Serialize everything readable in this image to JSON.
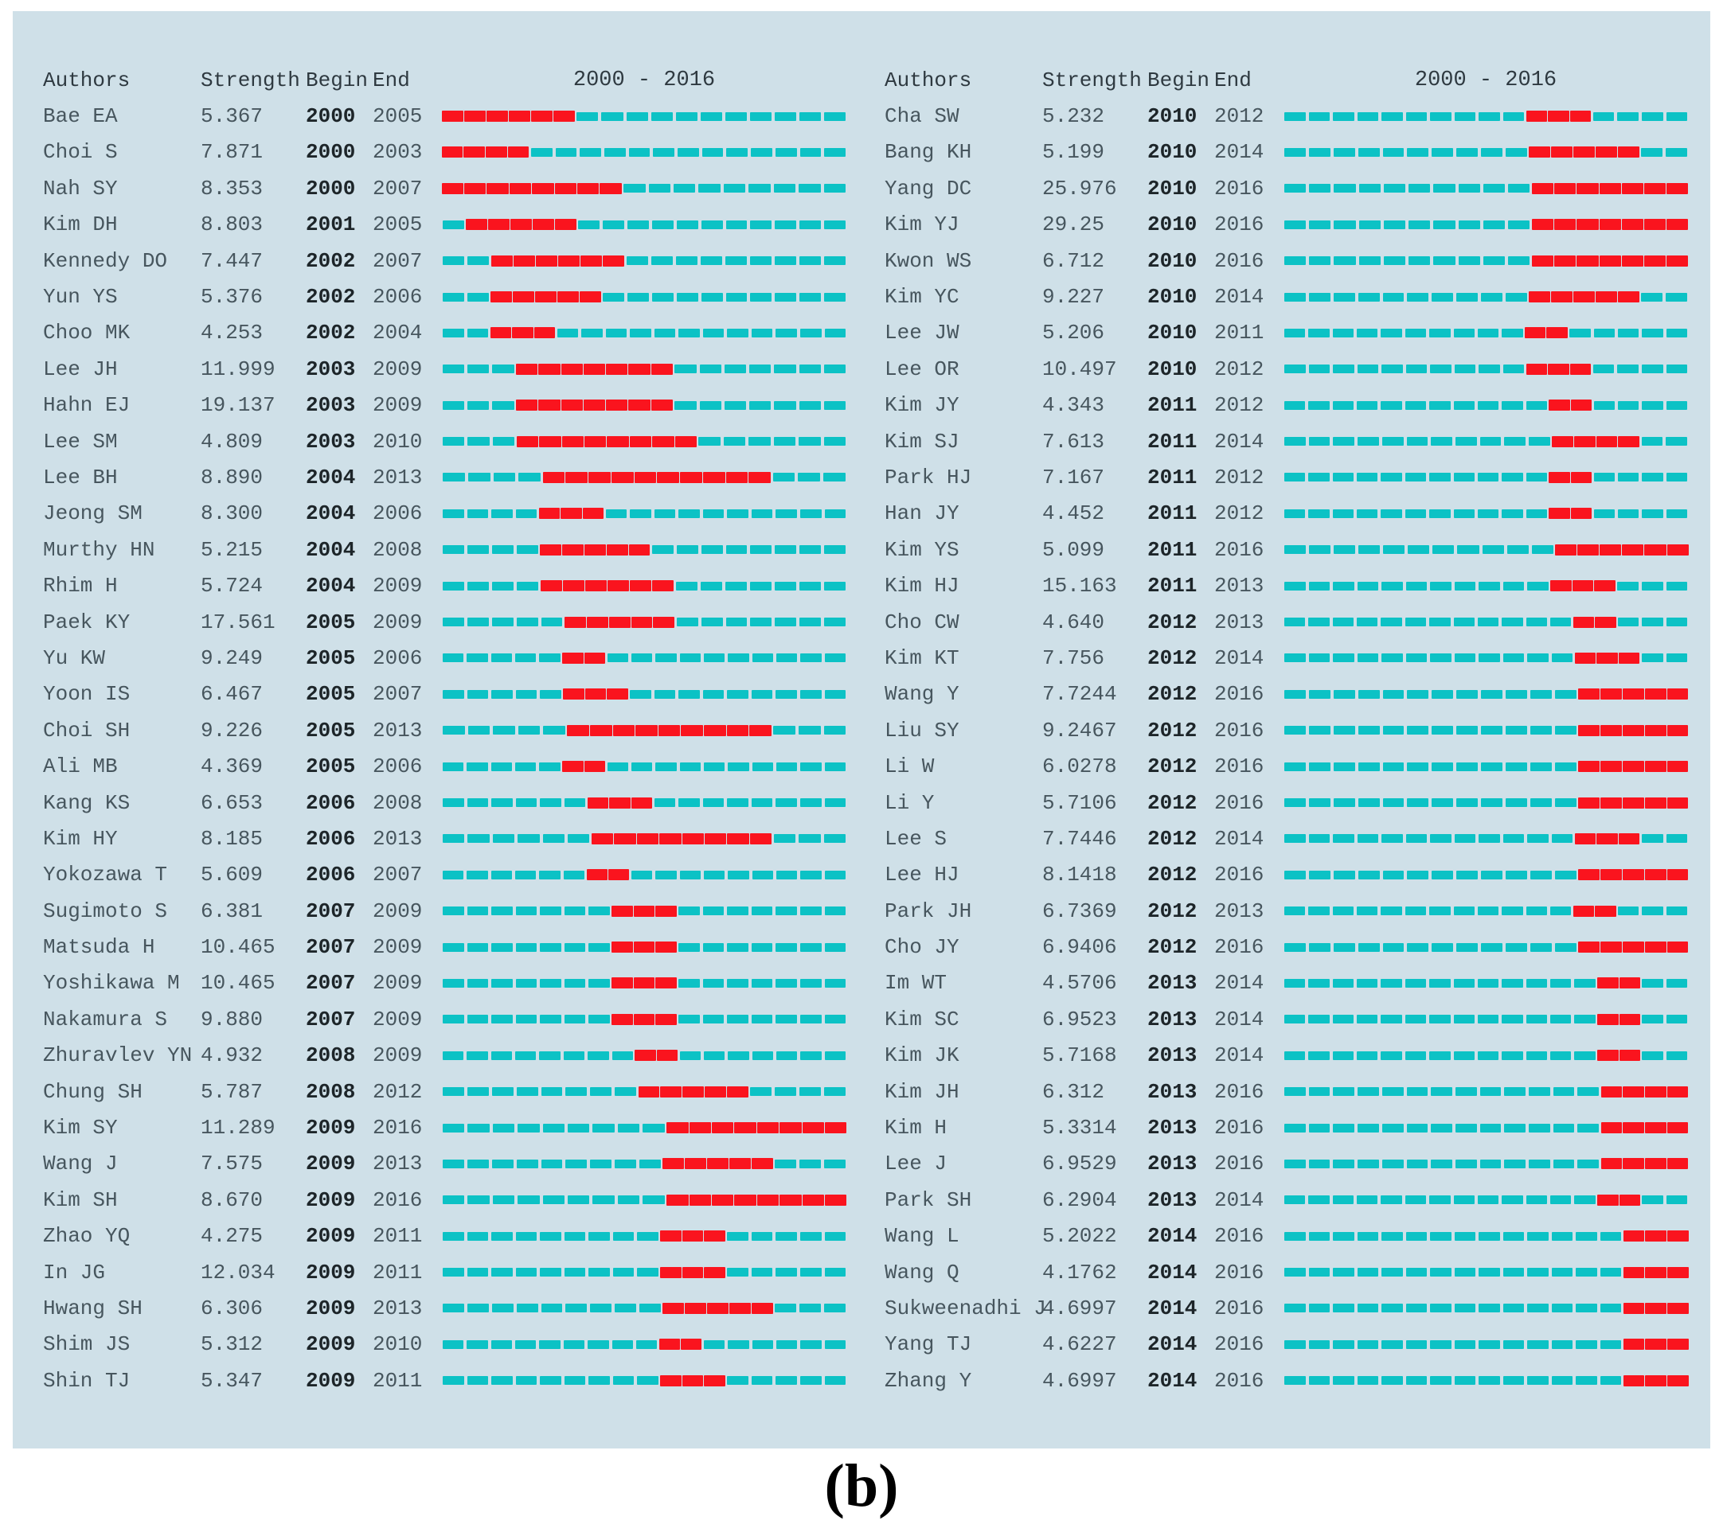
{
  "header": {
    "authors": "Authors",
    "strength": "Strength",
    "begin": "Begin",
    "end": "End",
    "range": "2000 - 2016"
  },
  "caption": "(b)",
  "colors": {
    "panel_bg": "#cfe0e8",
    "burst_red": "#fa141e",
    "timeline_cyan": "#0cc2c5",
    "text": "#47565e",
    "begin_text": "#1d2529"
  },
  "chart_data": {
    "type": "table",
    "columns": [
      "Authors",
      "Strength",
      "Begin",
      "End",
      "2000 - 2016"
    ],
    "year_range": [
      2000,
      2016
    ],
    "legend": {
      "red_dash": "burst period (Begin to End)",
      "cyan_dash": "non-burst years"
    },
    "left_rows": [
      {
        "author": "Bae EA",
        "strength": "5.367",
        "begin": 2000,
        "end": 2005
      },
      {
        "author": "Choi S",
        "strength": "7.871",
        "begin": 2000,
        "end": 2003
      },
      {
        "author": "Nah SY",
        "strength": "8.353",
        "begin": 2000,
        "end": 2007
      },
      {
        "author": "Kim DH",
        "strength": "8.803",
        "begin": 2001,
        "end": 2005
      },
      {
        "author": "Kennedy DO",
        "strength": "7.447",
        "begin": 2002,
        "end": 2007
      },
      {
        "author": "Yun YS",
        "strength": "5.376",
        "begin": 2002,
        "end": 2006
      },
      {
        "author": "Choo MK",
        "strength": "4.253",
        "begin": 2002,
        "end": 2004
      },
      {
        "author": "Lee JH",
        "strength": "11.999",
        "begin": 2003,
        "end": 2009
      },
      {
        "author": "Hahn EJ",
        "strength": "19.137",
        "begin": 2003,
        "end": 2009
      },
      {
        "author": "Lee SM",
        "strength": "4.809",
        "begin": 2003,
        "end": 2010
      },
      {
        "author": "Lee BH",
        "strength": "8.890",
        "begin": 2004,
        "end": 2013
      },
      {
        "author": "Jeong SM",
        "strength": "8.300",
        "begin": 2004,
        "end": 2006
      },
      {
        "author": "Murthy HN",
        "strength": "5.215",
        "begin": 2004,
        "end": 2008
      },
      {
        "author": "Rhim H",
        "strength": "5.724",
        "begin": 2004,
        "end": 2009
      },
      {
        "author": "Paek KY",
        "strength": "17.561",
        "begin": 2005,
        "end": 2009
      },
      {
        "author": "Yu KW",
        "strength": "9.249",
        "begin": 2005,
        "end": 2006
      },
      {
        "author": "Yoon IS",
        "strength": "6.467",
        "begin": 2005,
        "end": 2007
      },
      {
        "author": "Choi SH",
        "strength": "9.226",
        "begin": 2005,
        "end": 2013
      },
      {
        "author": "Ali MB",
        "strength": "4.369",
        "begin": 2005,
        "end": 2006
      },
      {
        "author": "Kang KS",
        "strength": "6.653",
        "begin": 2006,
        "end": 2008
      },
      {
        "author": "Kim HY",
        "strength": "8.185",
        "begin": 2006,
        "end": 2013
      },
      {
        "author": "Yokozawa T",
        "strength": "5.609",
        "begin": 2006,
        "end": 2007
      },
      {
        "author": "Sugimoto S",
        "strength": "6.381",
        "begin": 2007,
        "end": 2009
      },
      {
        "author": "Matsuda H",
        "strength": "10.465",
        "begin": 2007,
        "end": 2009
      },
      {
        "author": "Yoshikawa M",
        "strength": "10.465",
        "begin": 2007,
        "end": 2009
      },
      {
        "author": "Nakamura S",
        "strength": "9.880",
        "begin": 2007,
        "end": 2009
      },
      {
        "author": "Zhuravlev YN",
        "strength": "4.932",
        "begin": 2008,
        "end": 2009
      },
      {
        "author": "Chung SH",
        "strength": "5.787",
        "begin": 2008,
        "end": 2012
      },
      {
        "author": "Kim SY",
        "strength": "11.289",
        "begin": 2009,
        "end": 2016
      },
      {
        "author": "Wang J",
        "strength": "7.575",
        "begin": 2009,
        "end": 2013
      },
      {
        "author": "Kim SH",
        "strength": "8.670",
        "begin": 2009,
        "end": 2016
      },
      {
        "author": "Zhao YQ",
        "strength": "4.275",
        "begin": 2009,
        "end": 2011
      },
      {
        "author": "In JG",
        "strength": "12.034",
        "begin": 2009,
        "end": 2011
      },
      {
        "author": "Hwang SH",
        "strength": "6.306",
        "begin": 2009,
        "end": 2013
      },
      {
        "author": "Shim JS",
        "strength": "5.312",
        "begin": 2009,
        "end": 2010
      },
      {
        "author": "Shin TJ",
        "strength": "5.347",
        "begin": 2009,
        "end": 2011
      }
    ],
    "right_rows": [
      {
        "author": "Cha SW",
        "strength": "5.232",
        "begin": 2010,
        "end": 2012
      },
      {
        "author": "Bang KH",
        "strength": "5.199",
        "begin": 2010,
        "end": 2014
      },
      {
        "author": "Yang DC",
        "strength": "25.976",
        "begin": 2010,
        "end": 2016
      },
      {
        "author": "Kim YJ",
        "strength": "29.25",
        "begin": 2010,
        "end": 2016
      },
      {
        "author": "Kwon WS",
        "strength": "6.712",
        "begin": 2010,
        "end": 2016
      },
      {
        "author": "Kim YC",
        "strength": "9.227",
        "begin": 2010,
        "end": 2014
      },
      {
        "author": "Lee JW",
        "strength": "5.206",
        "begin": 2010,
        "end": 2011
      },
      {
        "author": "Lee OR",
        "strength": "10.497",
        "begin": 2010,
        "end": 2012
      },
      {
        "author": "Kim JY",
        "strength": "4.343",
        "begin": 2011,
        "end": 2012
      },
      {
        "author": "Kim SJ",
        "strength": "7.613",
        "begin": 2011,
        "end": 2014
      },
      {
        "author": "Park HJ",
        "strength": "7.167",
        "begin": 2011,
        "end": 2012
      },
      {
        "author": "Han JY",
        "strength": "4.452",
        "begin": 2011,
        "end": 2012
      },
      {
        "author": "Kim YS",
        "strength": "5.099",
        "begin": 2011,
        "end": 2016
      },
      {
        "author": "Kim HJ",
        "strength": "15.163",
        "begin": 2011,
        "end": 2013
      },
      {
        "author": "Cho CW",
        "strength": "4.640",
        "begin": 2012,
        "end": 2013
      },
      {
        "author": "Kim KT",
        "strength": "7.756",
        "begin": 2012,
        "end": 2014
      },
      {
        "author": "Wang Y",
        "strength": "7.7244",
        "begin": 2012,
        "end": 2016
      },
      {
        "author": "Liu SY",
        "strength": "9.2467",
        "begin": 2012,
        "end": 2016
      },
      {
        "author": "Li W",
        "strength": "6.0278",
        "begin": 2012,
        "end": 2016
      },
      {
        "author": "Li Y",
        "strength": "5.7106",
        "begin": 2012,
        "end": 2016
      },
      {
        "author": "Lee S",
        "strength": "7.7446",
        "begin": 2012,
        "end": 2014
      },
      {
        "author": "Lee HJ",
        "strength": "8.1418",
        "begin": 2012,
        "end": 2016
      },
      {
        "author": "Park JH",
        "strength": "6.7369",
        "begin": 2012,
        "end": 2013
      },
      {
        "author": "Cho JY",
        "strength": "6.9406",
        "begin": 2012,
        "end": 2016
      },
      {
        "author": "Im WT",
        "strength": "4.5706",
        "begin": 2013,
        "end": 2014
      },
      {
        "author": "Kim SC",
        "strength": "6.9523",
        "begin": 2013,
        "end": 2014
      },
      {
        "author": "Kim JK",
        "strength": "5.7168",
        "begin": 2013,
        "end": 2014
      },
      {
        "author": "Kim JH",
        "strength": "6.312",
        "begin": 2013,
        "end": 2016
      },
      {
        "author": "Kim H",
        "strength": "5.3314",
        "begin": 2013,
        "end": 2016
      },
      {
        "author": "Lee J",
        "strength": "6.9529",
        "begin": 2013,
        "end": 2016
      },
      {
        "author": "Park SH",
        "strength": "6.2904",
        "begin": 2013,
        "end": 2014
      },
      {
        "author": "Wang L",
        "strength": "5.2022",
        "begin": 2014,
        "end": 2016
      },
      {
        "author": "Wang Q",
        "strength": "4.1762",
        "begin": 2014,
        "end": 2016
      },
      {
        "author": "Sukweenadhi J",
        "strength": "4.6997",
        "begin": 2014,
        "end": 2016
      },
      {
        "author": "Yang TJ",
        "strength": "4.6227",
        "begin": 2014,
        "end": 2016
      },
      {
        "author": "Zhang Y",
        "strength": "4.6997",
        "begin": 2014,
        "end": 2016
      }
    ]
  }
}
